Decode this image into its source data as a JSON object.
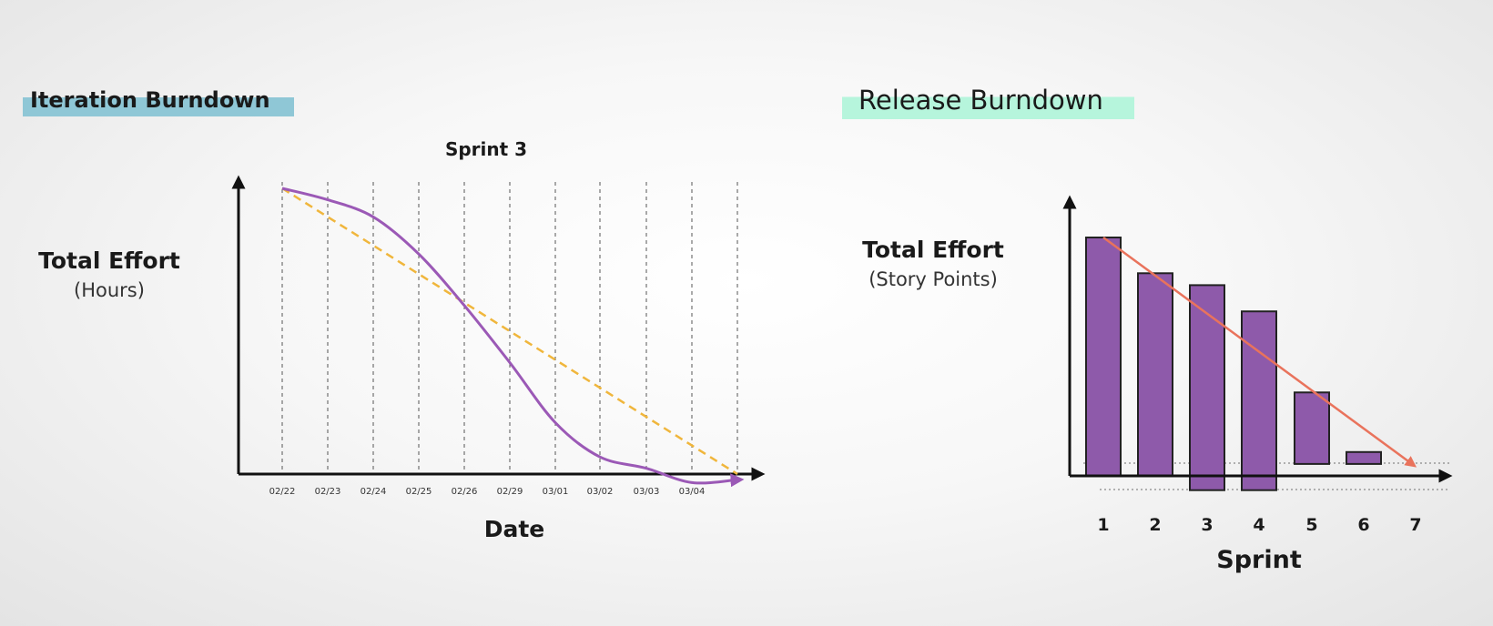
{
  "chart_data": [
    {
      "type": "line",
      "heading": "Iteration Burndown",
      "title": "Sprint 3",
      "xlabel": "Date",
      "ylabel": "Total Effort",
      "ylabel_unit": "(Hours)",
      "categories": [
        "02/22",
        "02/23",
        "02/24",
        "02/25",
        "02/26",
        "02/29",
        "03/01",
        "03/02",
        "03/03",
        "03/04",
        ""
      ],
      "ylim": [
        0,
        100
      ],
      "grid": "vertical-dashed",
      "series": [
        {
          "role": "actual",
          "color": "#9b59b6",
          "values": [
            100,
            96,
            90,
            77,
            59,
            39,
            18,
            6,
            2,
            -3,
            -2
          ]
        },
        {
          "role": "ideal",
          "color": "#f0b63c",
          "values": [
            100,
            90,
            80,
            70,
            60,
            50,
            40,
            30,
            20,
            10,
            0
          ]
        }
      ]
    },
    {
      "type": "bar",
      "heading": "Release Burndown",
      "xlabel": "Sprint",
      "ylabel": "Total Effort",
      "ylabel_unit": "(Story Points)",
      "categories": [
        "1",
        "2",
        "3",
        "4",
        "5",
        "6",
        "7"
      ],
      "bars": [
        {
          "top": 100,
          "bottom": 0
        },
        {
          "top": 85,
          "bottom": 0
        },
        {
          "top": 80,
          "bottom": -6
        },
        {
          "top": 69,
          "bottom": -6
        },
        {
          "top": 35,
          "bottom": 5
        },
        {
          "top": 10,
          "bottom": 5
        },
        null
      ],
      "bar_color": "#8e5aaa",
      "trend": {
        "from": {
          "x": "1",
          "y": 100
        },
        "to": {
          "x": "7",
          "y": 5
        },
        "color": "#e9735c"
      },
      "reference_lines": [
        5,
        -6
      ]
    }
  ]
}
